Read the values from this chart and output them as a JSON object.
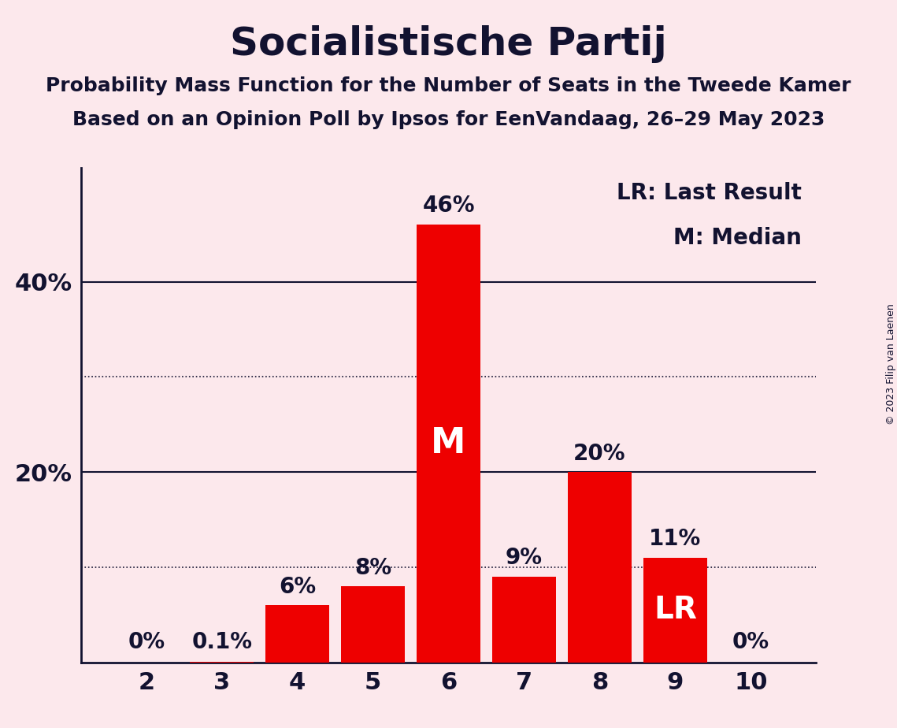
{
  "title": "Socialistische Partij",
  "subtitle1": "Probability Mass Function for the Number of Seats in the Tweede Kamer",
  "subtitle2": "Based on an Opinion Poll by Ipsos for EenVandaag, 26–29 May 2023",
  "copyright": "© 2023 Filip van Laenen",
  "categories": [
    2,
    3,
    4,
    5,
    6,
    7,
    8,
    9,
    10
  ],
  "values": [
    0.0,
    0.1,
    6.0,
    8.0,
    46.0,
    9.0,
    20.0,
    11.0,
    0.0
  ],
  "bar_color": "#ee0000",
  "background_color": "#fce8ec",
  "text_color": "#121230",
  "median_bar_idx": 4,
  "lr_bar_idx": 7,
  "legend_lr": "LR: Last Result",
  "legend_m": "M: Median",
  "ylim": [
    0,
    52
  ],
  "solid_lines": [
    20,
    40
  ],
  "dotted_lines": [
    10,
    30
  ],
  "bar_labels": {
    "2": "0%",
    "3": "0.1%",
    "4": "6%",
    "5": "8%",
    "6": "46%",
    "7": "9%",
    "8": "20%",
    "9": "11%",
    "10": "0%"
  },
  "label_fontsize": 20,
  "tick_fontsize": 22,
  "title_fontsize": 36,
  "subtitle_fontsize": 18,
  "legend_fontsize": 20,
  "inside_label_fontsize": 32,
  "lr_label_fontsize": 28
}
